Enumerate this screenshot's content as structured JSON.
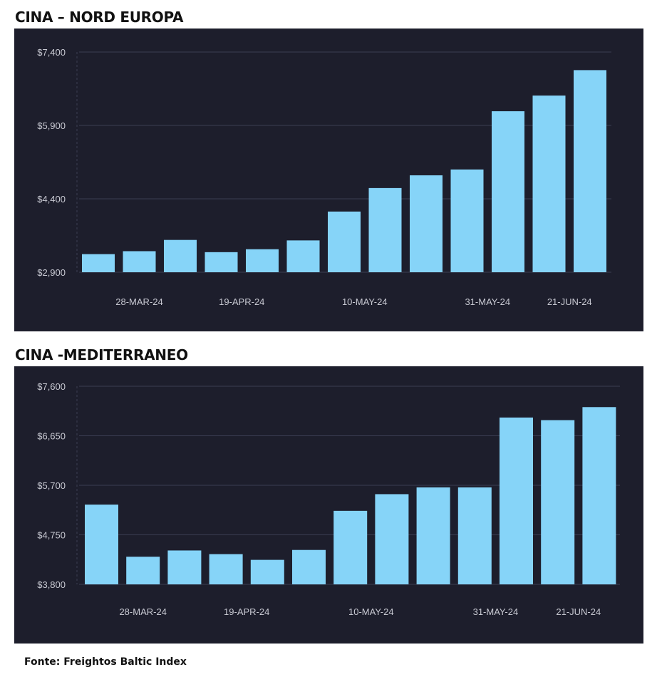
{
  "chart_data": [
    {
      "type": "bar",
      "title": "CINA – NORD EUROPA",
      "xlabel": "",
      "ylabel": "",
      "ylim": [
        2900,
        7400
      ],
      "yticks": [
        "$7,400",
        "$5,900",
        "$4,400",
        "$2,900"
      ],
      "ytick_values": [
        7400,
        5900,
        4400,
        2900
      ],
      "xticks": [
        "28-MAR-24",
        "19-APR-24",
        "10-MAY-24",
        "31-MAY-24",
        "21-JUN-24"
      ],
      "xtick_positions": [
        1,
        3.5,
        6.5,
        9.5,
        11.5
      ],
      "values": [
        3270,
        3330,
        3560,
        3310,
        3370,
        3550,
        4140,
        4620,
        4880,
        5000,
        6190,
        6510,
        7030
      ],
      "bar_color": "#86d4f8"
    },
    {
      "type": "bar",
      "title": "CINA -MEDITERRANEO",
      "xlabel": "",
      "ylabel": "",
      "ylim": [
        3800,
        7600
      ],
      "yticks": [
        "$7,600",
        "$6,650",
        "$5,700",
        "$4,750",
        "$3,800"
      ],
      "ytick_values": [
        7600,
        6650,
        5700,
        4750,
        3800
      ],
      "xticks": [
        "28-MAR-24",
        "19-APR-24",
        "10-MAY-24",
        "31-MAY-24",
        "21-JUN-24"
      ],
      "xtick_positions": [
        1,
        3.5,
        6.5,
        9.5,
        11.5
      ],
      "values": [
        5330,
        4330,
        4450,
        4380,
        4270,
        4460,
        5210,
        5530,
        5660,
        5660,
        7000,
        6950,
        7200
      ],
      "bar_color": "#86d4f8"
    }
  ],
  "footer": "Fonte: Freightos Baltic Index",
  "colors": {
    "panel_bg": "#1d1e2c",
    "grid": "#3a3d52",
    "tick_text": "#c8c9d2",
    "bar": "#86d4f8"
  }
}
